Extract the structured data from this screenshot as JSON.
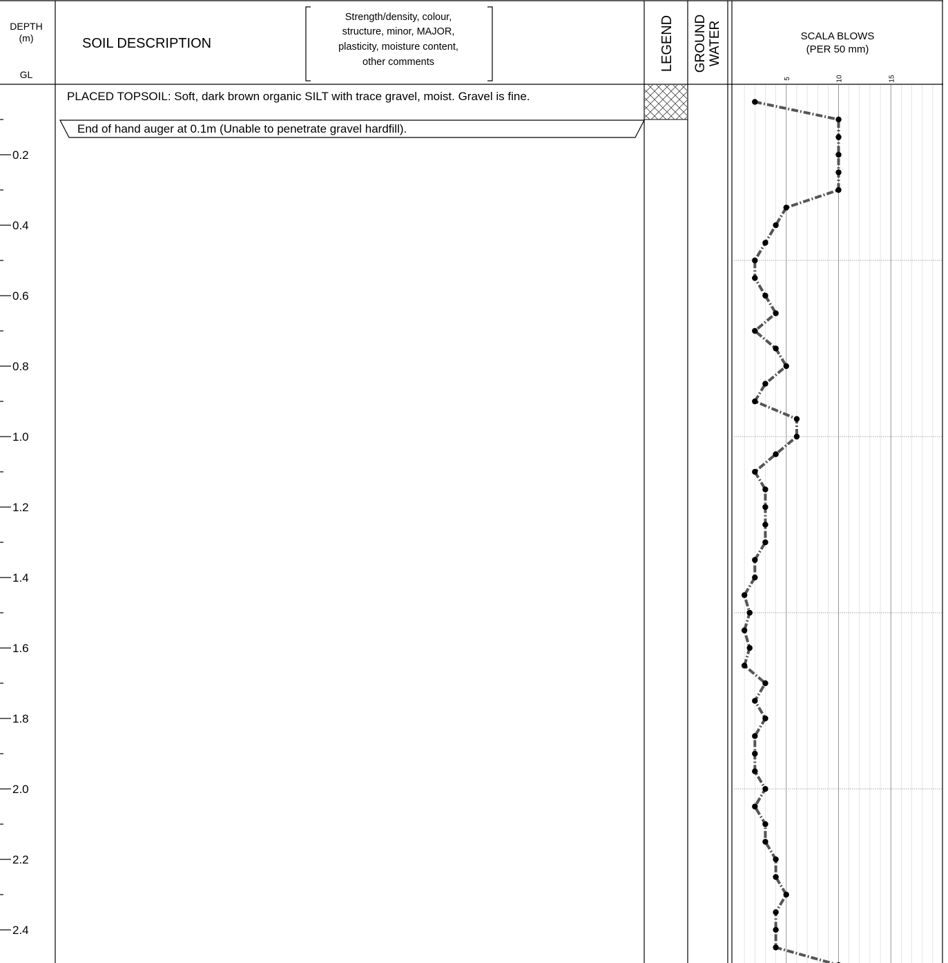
{
  "header": {
    "depth_line1": "DEPTH",
    "depth_line2": "(m)",
    "depth_line3": "GL",
    "soil_description": "SOIL DESCRIPTION",
    "guide_lines": [
      "Strength/density, colour,",
      "structure, minor, MAJOR,",
      "plasticity, moisture content,",
      "other comments"
    ],
    "legend": "LEGEND",
    "ground_water_line1": "GROUND",
    "ground_water_line2": "WATER",
    "scala_line1": "SCALA BLOWS",
    "scala_line2": "(PER 50 mm)",
    "scala_ticks": [
      "5",
      "10",
      "15"
    ]
  },
  "depth_labels": [
    "0.2",
    "0.4",
    "0.6",
    "0.8",
    "1.0",
    "1.2",
    "1.4",
    "1.6",
    "1.8",
    "2.0",
    "2.2",
    "2.4"
  ],
  "layers": {
    "topsoil": "PLACED TOPSOIL: Soft, dark brown organic SILT with trace gravel, moist. Gravel is fine.",
    "end_note": "End of hand auger at 0.1m (Unable to penetrate gravel hardfill)."
  },
  "legend_pattern": "cross-hatch",
  "chart_data": {
    "type": "line",
    "title": "SCALA BLOWS",
    "xlabel": "(PER 50 mm)",
    "ylabel": "DEPTH (m)",
    "xticks": [
      5,
      10,
      15
    ],
    "xlim": [
      0,
      20
    ],
    "ylim": [
      0,
      2.5
    ],
    "y_inverted": true,
    "series": [
      {
        "depth": [
          0.05,
          0.1,
          0.15,
          0.2,
          0.25,
          0.3,
          0.35,
          0.4,
          0.45,
          0.5,
          0.55,
          0.6,
          0.65,
          0.7,
          0.75,
          0.8,
          0.85,
          0.9,
          0.95,
          1.0,
          1.05,
          1.1,
          1.15,
          1.2,
          1.25,
          1.3,
          1.35,
          1.4,
          1.45,
          1.5,
          1.55,
          1.6,
          1.65,
          1.7,
          1.75,
          1.8,
          1.85,
          1.9,
          1.95,
          2.0,
          2.05,
          2.1,
          2.15,
          2.2,
          2.25,
          2.3,
          2.35,
          2.4,
          2.45,
          2.5
        ],
        "blows": [
          2,
          10,
          10,
          10,
          10,
          10,
          5,
          4,
          3,
          2,
          2,
          3,
          4,
          2,
          4,
          5,
          3,
          2,
          6,
          6,
          4,
          2,
          3,
          3,
          3,
          3,
          2,
          2,
          1,
          1.5,
          1,
          1.5,
          1,
          3,
          2,
          3,
          2,
          2,
          2,
          3,
          2,
          3,
          3,
          4,
          4,
          5,
          4,
          4,
          4,
          10
        ]
      }
    ]
  }
}
